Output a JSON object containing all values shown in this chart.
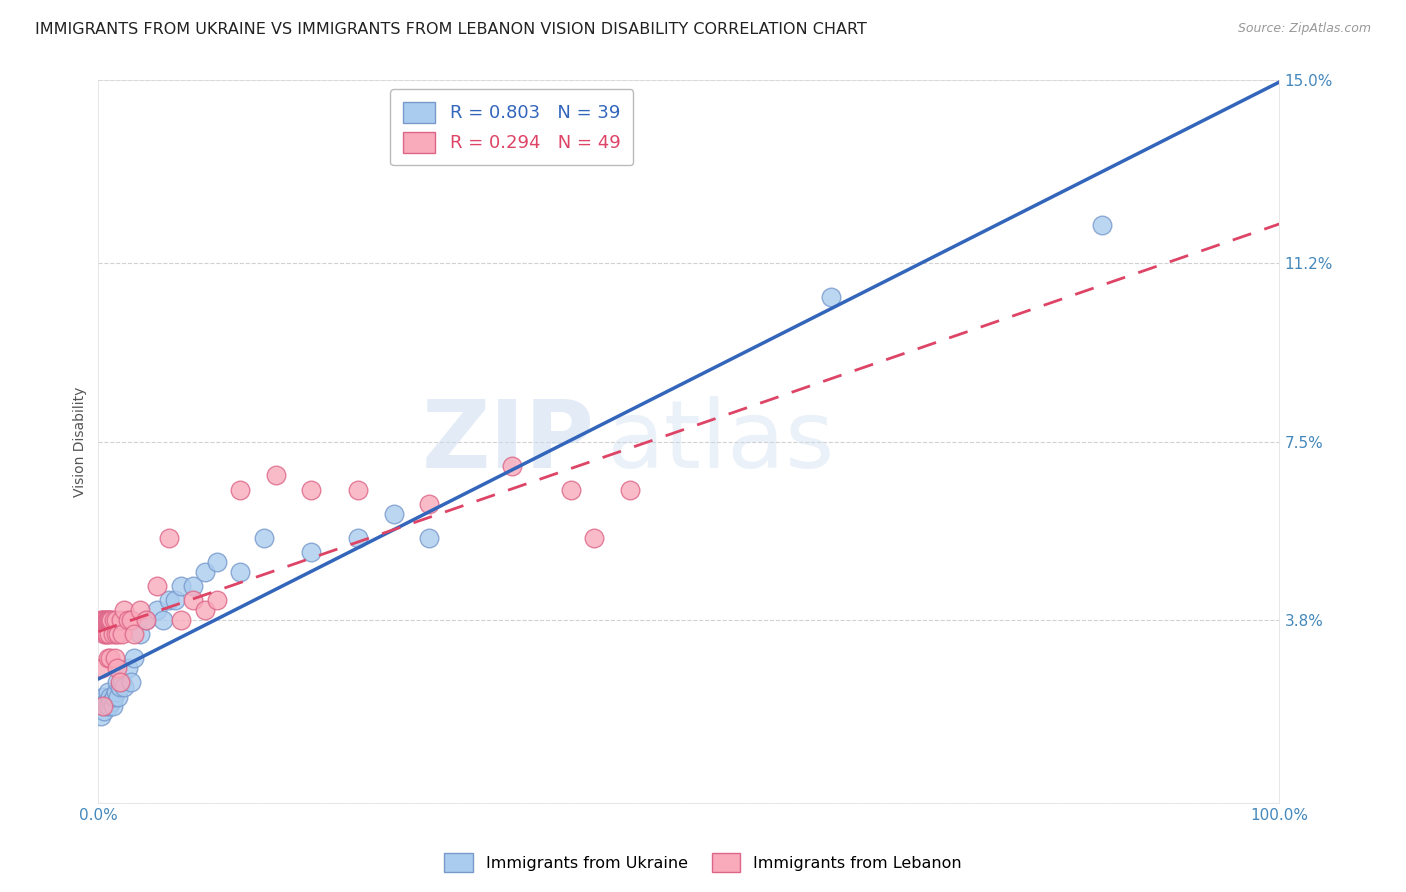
{
  "title": "IMMIGRANTS FROM UKRAINE VS IMMIGRANTS FROM LEBANON VISION DISABILITY CORRELATION CHART",
  "source": "Source: ZipAtlas.com",
  "ylabel": "Vision Disability",
  "xlabel": "",
  "xlim": [
    0,
    1.0
  ],
  "ylim": [
    0,
    0.15
  ],
  "ytick_vals": [
    0.0,
    0.038,
    0.075,
    0.112,
    0.15
  ],
  "ytick_labels": [
    "",
    "3.8%",
    "7.5%",
    "11.2%",
    "15.0%"
  ],
  "xtick_vals": [
    0.0,
    0.2,
    0.4,
    0.6,
    0.8,
    1.0
  ],
  "xtick_labels": [
    "0.0%",
    "",
    "",
    "",
    "",
    "100.0%"
  ],
  "background_color": "#ffffff",
  "grid_color": "#cccccc",
  "ukraine_color": "#aaccee",
  "ukraine_edge": "#7799cc",
  "lebanon_color": "#f9aabb",
  "lebanon_edge": "#dd6688",
  "ukraine_line_color": "#3366bb",
  "lebanon_line_color": "#dd4466",
  "legend_ukraine_R": "0.803",
  "legend_ukraine_N": "39",
  "legend_lebanon_R": "0.294",
  "legend_lebanon_N": "49",
  "ukraine_x": [
    0.002,
    0.003,
    0.004,
    0.005,
    0.006,
    0.007,
    0.008,
    0.009,
    0.01,
    0.011,
    0.012,
    0.013,
    0.015,
    0.016,
    0.017,
    0.018,
    0.02,
    0.022,
    0.025,
    0.028,
    0.03,
    0.035,
    0.04,
    0.05,
    0.055,
    0.06,
    0.065,
    0.07,
    0.08,
    0.09,
    0.1,
    0.12,
    0.14,
    0.18,
    0.22,
    0.25,
    0.28,
    0.62,
    0.85
  ],
  "ukraine_y": [
    0.018,
    0.02,
    0.022,
    0.019,
    0.021,
    0.02,
    0.023,
    0.02,
    0.022,
    0.021,
    0.02,
    0.022,
    0.023,
    0.025,
    0.022,
    0.024,
    0.025,
    0.024,
    0.028,
    0.025,
    0.03,
    0.035,
    0.038,
    0.04,
    0.038,
    0.042,
    0.042,
    0.045,
    0.045,
    0.048,
    0.05,
    0.048,
    0.055,
    0.052,
    0.055,
    0.06,
    0.055,
    0.105,
    0.12
  ],
  "lebanon_x": [
    0.002,
    0.003,
    0.003,
    0.004,
    0.004,
    0.005,
    0.005,
    0.006,
    0.006,
    0.007,
    0.007,
    0.008,
    0.008,
    0.009,
    0.009,
    0.01,
    0.01,
    0.011,
    0.012,
    0.013,
    0.014,
    0.015,
    0.015,
    0.016,
    0.017,
    0.018,
    0.019,
    0.02,
    0.022,
    0.025,
    0.028,
    0.03,
    0.035,
    0.04,
    0.05,
    0.06,
    0.07,
    0.08,
    0.09,
    0.1,
    0.12,
    0.15,
    0.18,
    0.22,
    0.28,
    0.35,
    0.4,
    0.42,
    0.45
  ],
  "lebanon_y": [
    0.038,
    0.028,
    0.038,
    0.02,
    0.038,
    0.035,
    0.038,
    0.035,
    0.038,
    0.035,
    0.038,
    0.03,
    0.038,
    0.035,
    0.038,
    0.03,
    0.038,
    0.038,
    0.035,
    0.038,
    0.03,
    0.035,
    0.038,
    0.028,
    0.035,
    0.025,
    0.038,
    0.035,
    0.04,
    0.038,
    0.038,
    0.035,
    0.04,
    0.038,
    0.045,
    0.055,
    0.038,
    0.042,
    0.04,
    0.042,
    0.065,
    0.068,
    0.065,
    0.065,
    0.062,
    0.07,
    0.065,
    0.055,
    0.065
  ],
  "watermark_zip": "ZIP",
  "watermark_atlas": "atlas",
  "title_fontsize": 11.5,
  "axis_label_fontsize": 10,
  "tick_fontsize": 11,
  "legend_fontsize": 13
}
